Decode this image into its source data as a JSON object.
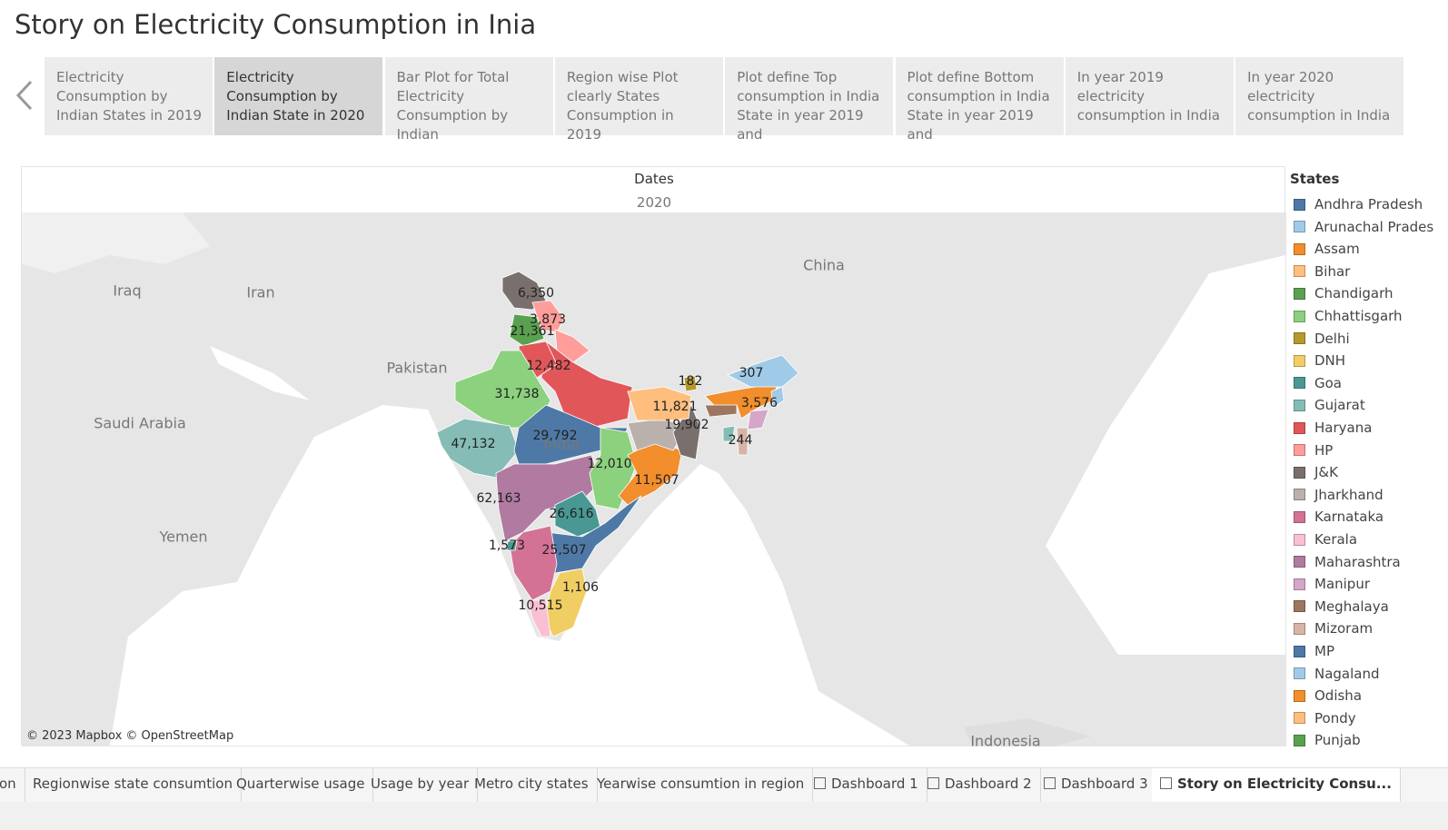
{
  "title": "Story on Electricity Consumption in Inia",
  "story_points": [
    "Electricity Consumption by Indian States in 2019",
    "Electricity Consumption by Indian State in 2020",
    "Bar Plot for Total Electricity Consumption by Indian",
    "Region wise Plot clearly States Consumption in 2019",
    "Plot define Top consumption in India State in year 2019 and",
    "Plot define Bottom consumption in India State in year 2019 and",
    "In year 2019 electricity consumption in India",
    "In year 2020 electricity consumption in India"
  ],
  "selected_story_point": 1,
  "map": {
    "header": "Dates",
    "year": "2020",
    "attribution": "© 2023 Mapbox © OpenStreetMap",
    "countries": [
      "Iraq",
      "Iran",
      "Pakistan",
      "Saudi Arabia",
      "Yemen",
      "China",
      "India",
      "Indonesia"
    ],
    "state_values": [
      "6,350",
      "3,873",
      "21,361",
      "12,482",
      "31,738",
      "47,132",
      "29,792",
      "62,163",
      "12,010",
      "11,507",
      "26,616",
      "25,507",
      "1,573",
      "1,106",
      "10,515",
      "11,821",
      "19,902",
      "182",
      "307",
      "3,576",
      "244"
    ]
  },
  "legend": {
    "title": "States",
    "items": [
      {
        "name": "Andhra Pradesh",
        "color": "#4e79a7"
      },
      {
        "name": "Arunachal Prades",
        "color": "#a0cbe8"
      },
      {
        "name": "Assam",
        "color": "#f28e2b"
      },
      {
        "name": "Bihar",
        "color": "#ffbe7d"
      },
      {
        "name": "Chandigarh",
        "color": "#59a14f"
      },
      {
        "name": "Chhattisgarh",
        "color": "#8cd17d"
      },
      {
        "name": "Delhi",
        "color": "#b6992d"
      },
      {
        "name": "DNH",
        "color": "#f1ce63"
      },
      {
        "name": "Goa",
        "color": "#499894"
      },
      {
        "name": "Gujarat",
        "color": "#86bcb6"
      },
      {
        "name": "Haryana",
        "color": "#e15759"
      },
      {
        "name": "HP",
        "color": "#ff9d9a"
      },
      {
        "name": "J&K",
        "color": "#79706e"
      },
      {
        "name": "Jharkhand",
        "color": "#bab0ac"
      },
      {
        "name": "Karnataka",
        "color": "#d37295"
      },
      {
        "name": "Kerala",
        "color": "#fabfd2"
      },
      {
        "name": "Maharashtra",
        "color": "#b07aa1"
      },
      {
        "name": "Manipur",
        "color": "#d4a6c8"
      },
      {
        "name": "Meghalaya",
        "color": "#9d7660"
      },
      {
        "name": "Mizoram",
        "color": "#d7b5a6"
      },
      {
        "name": "MP",
        "color": "#4e79a7"
      },
      {
        "name": "Nagaland",
        "color": "#a0cbe8"
      },
      {
        "name": "Odisha",
        "color": "#f28e2b"
      },
      {
        "name": "Pondy",
        "color": "#ffbe7d"
      },
      {
        "name": "Punjab",
        "color": "#59a14f"
      }
    ]
  },
  "sheet_tabs": [
    "on",
    "Regionwise state consumtion",
    "Quarterwise usage",
    "Usage by year",
    "Metro city states",
    "Yearwise consumtion in region",
    "Dashboard 1",
    "Dashboard 2",
    "Dashboard 3",
    "Story on Electricity Consu..."
  ],
  "active_sheet_tab": 9
}
